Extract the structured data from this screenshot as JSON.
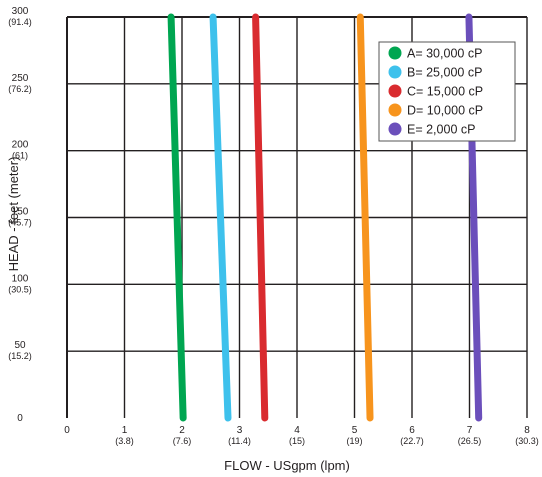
{
  "chart_data": {
    "type": "line",
    "xlabel": "FLOW - USgpm (lpm)",
    "ylabel": "HEAD - feet (meter)",
    "xlim": [
      0,
      8
    ],
    "ylim": [
      0,
      300
    ],
    "grid": true,
    "legend_position": "top-right",
    "x_ticks": [
      {
        "value": 0,
        "label": "0",
        "sub": ""
      },
      {
        "value": 1,
        "label": "1",
        "sub": "(3.8)"
      },
      {
        "value": 2,
        "label": "2",
        "sub": "(7.6)"
      },
      {
        "value": 3,
        "label": "3",
        "sub": "(11.4)"
      },
      {
        "value": 4,
        "label": "4",
        "sub": "(15)"
      },
      {
        "value": 5,
        "label": "5",
        "sub": "(19)"
      },
      {
        "value": 6,
        "label": "6",
        "sub": "(22.7)"
      },
      {
        "value": 7,
        "label": "7",
        "sub": "(26.5)"
      },
      {
        "value": 8,
        "label": "8",
        "sub": "(30.3)"
      }
    ],
    "y_ticks": [
      {
        "value": 0,
        "label": "0",
        "sub": ""
      },
      {
        "value": 50,
        "label": "50",
        "sub": "(15.2)"
      },
      {
        "value": 100,
        "label": "100",
        "sub": "(30.5)"
      },
      {
        "value": 150,
        "label": "150",
        "sub": "(45.7)"
      },
      {
        "value": 200,
        "label": "200",
        "sub": "(61)"
      },
      {
        "value": 250,
        "label": "250",
        "sub": "(76.2)"
      },
      {
        "value": 300,
        "label": "300",
        "sub": "(91.4)"
      }
    ],
    "series": [
      {
        "name": "A= 30,000 cP",
        "color": "#00a651",
        "x": [
          1.81,
          2.02
        ],
        "y": [
          300,
          0
        ]
      },
      {
        "name": "B= 25,000 cP",
        "color": "#3ec1ec",
        "x": [
          2.54,
          2.8
        ],
        "y": [
          300,
          0
        ]
      },
      {
        "name": "C= 15,000 cP",
        "color": "#d92b2f",
        "x": [
          3.28,
          3.44
        ],
        "y": [
          300,
          0
        ]
      },
      {
        "name": "D= 10,000 cP",
        "color": "#f7941d",
        "x": [
          5.1,
          5.27
        ],
        "y": [
          300,
          0
        ]
      },
      {
        "name": "E= 2,000 cP",
        "color": "#6b4fbb",
        "x": [
          6.99,
          7.16
        ],
        "y": [
          300,
          0
        ]
      }
    ]
  }
}
